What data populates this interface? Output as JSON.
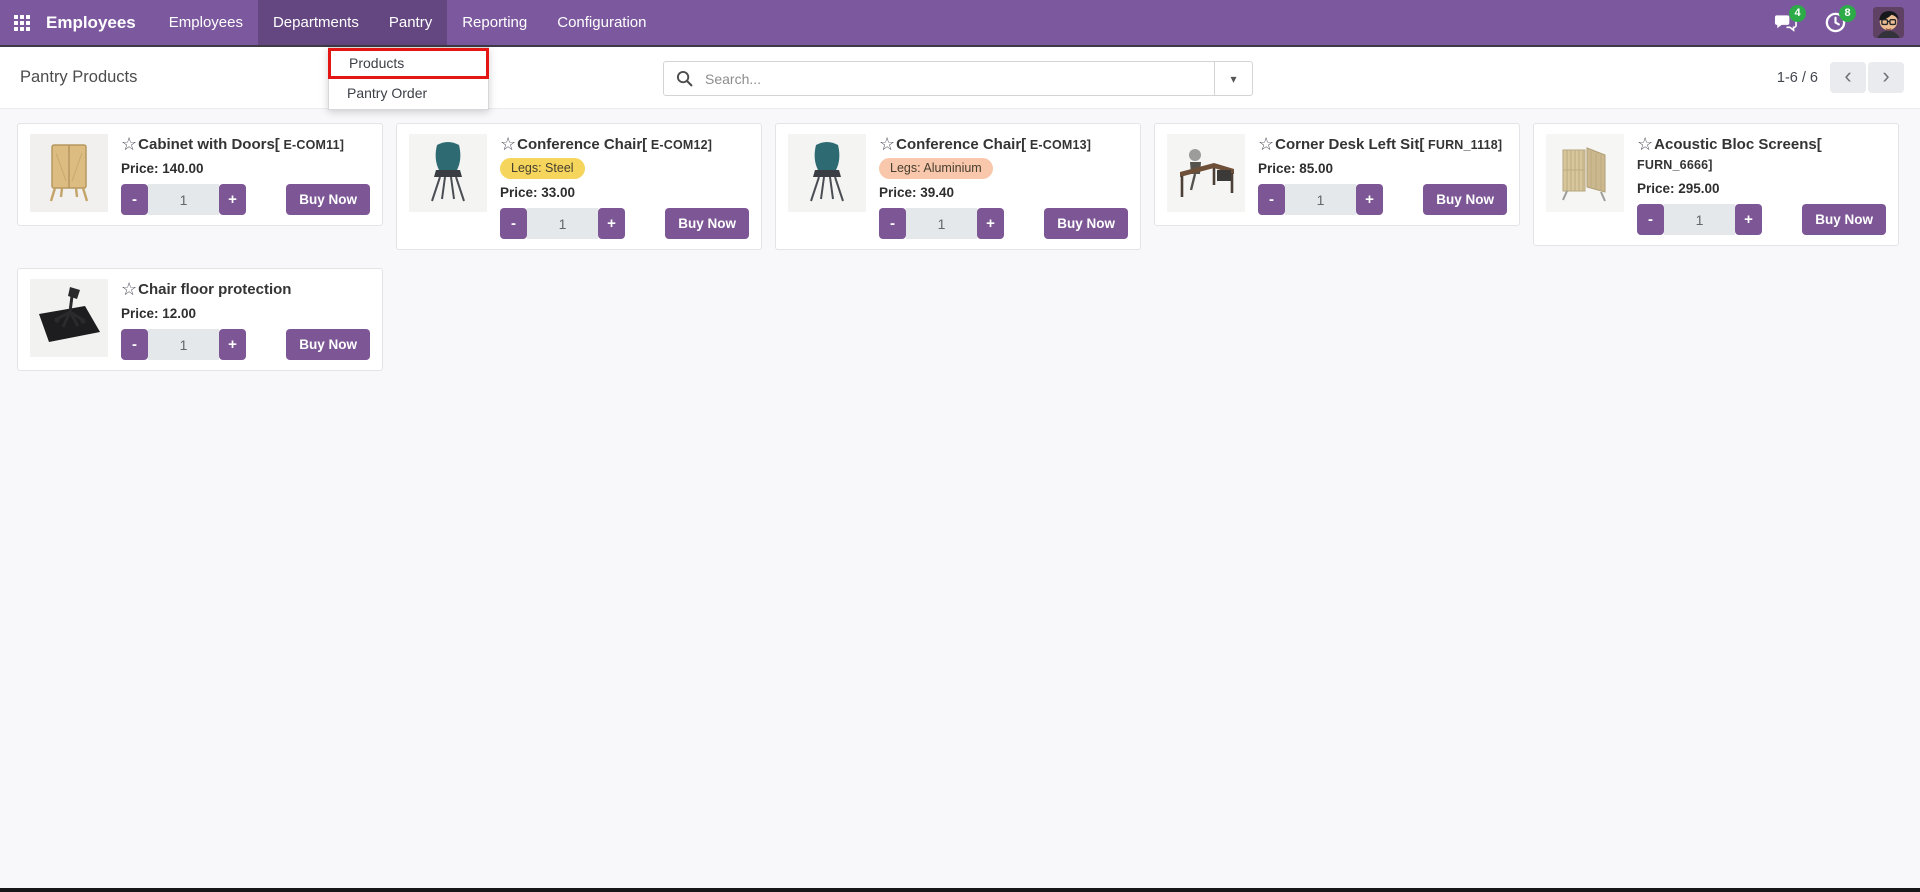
{
  "navbar": {
    "app_name": "Employees",
    "menu_items": [
      {
        "label": "Employees",
        "highlighted": false
      },
      {
        "label": "Departments",
        "highlighted": true
      },
      {
        "label": "Pantry",
        "highlighted": true
      },
      {
        "label": "Reporting",
        "highlighted": false
      },
      {
        "label": "Configuration",
        "highlighted": false
      }
    ],
    "messages_badge": "4",
    "activities_badge": "8"
  },
  "dropdown": {
    "items": [
      {
        "label": "Products",
        "highlighted": true
      },
      {
        "label": "Pantry Order",
        "highlighted": false
      }
    ],
    "highlight_color": "#e41613"
  },
  "control_panel": {
    "breadcrumb": "Pantry Products",
    "search_placeholder": "Search...",
    "pager_count": "1-6 / 6"
  },
  "icons": {
    "apps_menu": "grid-icon",
    "messages": "speech-bubbles-icon",
    "activities": "clock-icon",
    "search": "magnifier-icon",
    "filter_caret": "▾",
    "favorite_star": "☆",
    "pager_prev": "‹",
    "pager_next": "›"
  },
  "stepper": {
    "minus": "-",
    "plus": "+"
  },
  "buy_now_label": "Buy Now",
  "products": [
    {
      "title_main": "Cabinet with Doors[",
      "title_code": " E-COM11]",
      "badge": null,
      "price_text": "Price: 140.00",
      "qty": "1",
      "image": "cabinet"
    },
    {
      "title_main": "Conference Chair[",
      "title_code": " E-COM12]",
      "badge": {
        "label": "Legs: Steel",
        "bg": "#f5d55c"
      },
      "price_text": "Price: 33.00",
      "qty": "1",
      "image": "chair"
    },
    {
      "title_main": "Conference Chair[",
      "title_code": " E-COM13]",
      "badge": {
        "label": "Legs: Aluminium",
        "bg": "#f9c7ab"
      },
      "price_text": "Price: 39.40",
      "qty": "1",
      "image": "chair"
    },
    {
      "title_main": "Corner Desk Left Sit[",
      "title_code": " FURN_1118]",
      "badge": null,
      "price_text": "Price: 85.00",
      "qty": "1",
      "image": "desk"
    },
    {
      "title_main": "Acoustic Bloc Screens[",
      "title_code": " FURN_6666]",
      "badge": null,
      "price_text": "Price: 295.00",
      "qty": "1",
      "image": "screens"
    },
    {
      "title_main": "Chair floor protection",
      "title_code": "",
      "badge": null,
      "price_text": "Price: 12.00",
      "qty": "1",
      "image": "mat"
    }
  ],
  "colors": {
    "navbar_bg": "#7c589e",
    "navbar_active_bg": "#644680",
    "primary_button": "#7d5795",
    "notification_badge": "#2dab49",
    "content_bg": "#f8f8fb"
  }
}
